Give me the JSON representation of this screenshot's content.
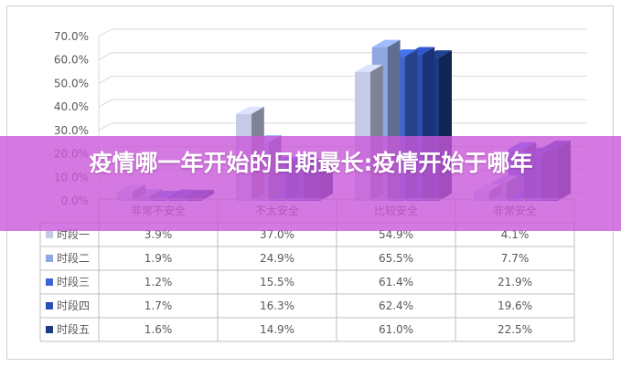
{
  "colors": {
    "series": [
      "#c5cae9",
      "#8fa8e2",
      "#3b67d6",
      "#2a4fb8",
      "#1b3a82"
    ],
    "grid": "#d9d9d9",
    "banner": "#c958da",
    "banner_text": "#ffffff"
  },
  "banner": {
    "title": "疫情哪一年开始的日期最长:疫情开始于哪年"
  },
  "chart_data": {
    "type": "bar",
    "style": "3d-clustered-column-with-data-table",
    "categories": [
      "非常不安全",
      "不太安全",
      "比较安全",
      "非常安全"
    ],
    "y_ticks": [
      "0.0%",
      "10.0%",
      "20.0%",
      "30.0%",
      "40.0%",
      "50.0%",
      "60.0%",
      "70.0%"
    ],
    "ylim": [
      0,
      70
    ],
    "grid": true,
    "legend": "data-table",
    "series": [
      {
        "name": "时段一",
        "values": [
          3.9,
          37.0,
          54.9,
          4.1
        ],
        "labels": [
          "3.9%",
          "37.0%",
          "54.9%",
          "4.1%"
        ]
      },
      {
        "name": "时段二",
        "values": [
          1.9,
          24.9,
          65.5,
          7.7
        ],
        "labels": [
          "1.9%",
          "24.9%",
          "65.5%",
          "7.7%"
        ]
      },
      {
        "name": "时段三",
        "values": [
          1.2,
          15.5,
          61.4,
          21.9
        ],
        "labels": [
          "1.2%",
          "15.5%",
          "61.4%",
          "21.9%"
        ]
      },
      {
        "name": "时段四",
        "values": [
          1.7,
          16.3,
          62.4,
          19.6
        ],
        "labels": [
          "1.7%",
          "16.3%",
          "62.4%",
          "19.6%"
        ]
      },
      {
        "name": "时段五",
        "values": [
          1.6,
          14.9,
          61.0,
          22.5
        ],
        "labels": [
          "1.6%",
          "14.9%",
          "61.0%",
          "22.5%"
        ]
      }
    ]
  }
}
